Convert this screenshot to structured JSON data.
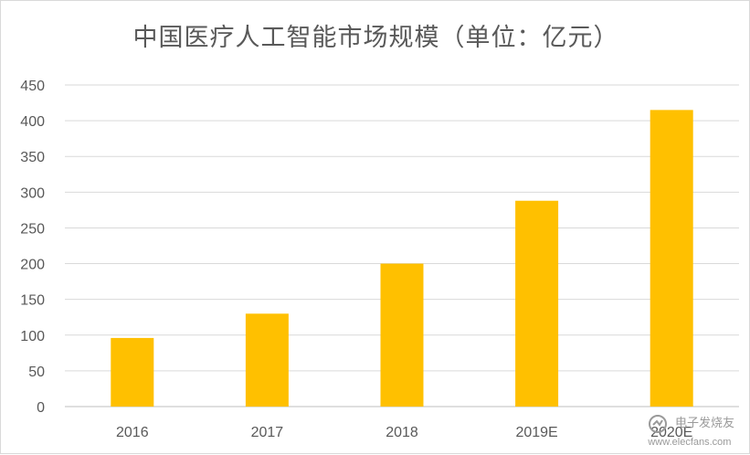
{
  "title": "中国医疗人工智能市场规模（单位：亿元）",
  "chart_data": {
    "type": "bar",
    "title": "中国医疗人工智能市场规模（单位：亿元）",
    "categories": [
      "2016",
      "2017",
      "2018",
      "2019E",
      "2020E"
    ],
    "values": [
      96,
      130,
      200,
      288,
      415
    ],
    "ylim": [
      0,
      450
    ],
    "yticks": [
      0,
      50,
      100,
      150,
      200,
      250,
      300,
      350,
      400,
      450
    ],
    "xlabel": "",
    "ylabel": "",
    "grid": true,
    "bar_color": "#ffc000"
  },
  "watermark": {
    "text": "电子发烧友",
    "url": "www.elecfans.com"
  }
}
